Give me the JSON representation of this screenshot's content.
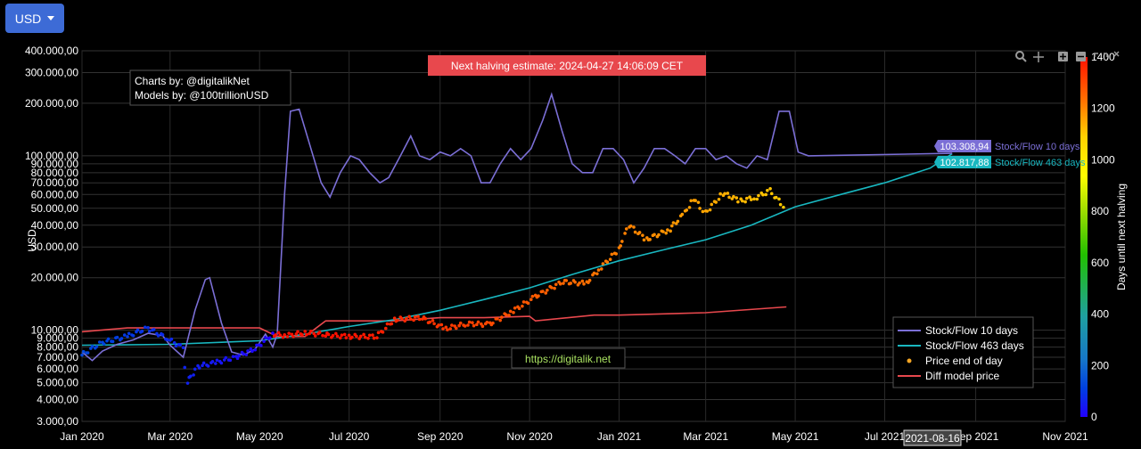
{
  "currency_button": {
    "label": "USD"
  },
  "credits": {
    "line1": "Charts by: @digitalikNet",
    "line2": "Models by: @100trillionUSD"
  },
  "halving_banner": "Next halving estimate: 2024-04-27 14:06:09 CET",
  "watermark": "https://digitalik.net",
  "crosshair_date": "2021-08-16",
  "colors": {
    "s2f10": "#7b6fd6",
    "s2f463": "#19b7c0",
    "diff": "#e8484d",
    "banner": "#e8484d",
    "button": "#3d6bd6"
  },
  "chart_data": {
    "type": "line",
    "x_ticks": [
      "Jan 2020",
      "Mar 2020",
      "May 2020",
      "Jul 2020",
      "Sep 2020",
      "Nov 2020",
      "Jan 2021",
      "Mar 2021",
      "May 2021",
      "Jul 2021",
      "Sep 2021",
      "Nov 2021"
    ],
    "x_range": [
      "2020-01-01",
      "2021-11-01"
    ],
    "y_scale": "log",
    "y_range": [
      3000,
      400000
    ],
    "y_label": "USD",
    "y_ticks": [
      "3.000,00",
      "4.000,00",
      "5.000,00",
      "6.000,00",
      "7.000,00",
      "8.000,00",
      "9.000,00",
      "10.000,00",
      "20.000,00",
      "30.000,00",
      "40.000,00",
      "50.000,00",
      "60.000,00",
      "70.000,00",
      "80.000,00",
      "90.000,00",
      "100.000,00",
      "200.000,00",
      "300.000,00",
      "400.000,00"
    ],
    "y_tick_values": [
      3000,
      4000,
      5000,
      6000,
      7000,
      8000,
      9000,
      10000,
      20000,
      30000,
      40000,
      50000,
      60000,
      70000,
      80000,
      90000,
      100000,
      200000,
      300000,
      400000
    ],
    "colorbar": {
      "label": "Days until next halving",
      "range": [
        0,
        1400
      ],
      "ticks": [
        "0",
        "200",
        "400",
        "600",
        "800",
        "1000",
        "1200",
        "1400"
      ],
      "tick_values": [
        0,
        200,
        400,
        600,
        800,
        1000,
        1200,
        1400
      ]
    },
    "legend": [
      {
        "name": "Stock/Flow 10 days",
        "color": "#7b6fd6",
        "style": "line"
      },
      {
        "name": "Stock/Flow 463 days",
        "color": "#19b7c0",
        "style": "line"
      },
      {
        "name": "Price end of day",
        "color": "#f5a623",
        "style": "dot"
      },
      {
        "name": "Diff model price",
        "color": "#e8484d",
        "style": "line"
      }
    ],
    "end_labels": [
      {
        "series": "Stock/Flow 10 days",
        "value": "103.308,94",
        "color": "#7b6fd6"
      },
      {
        "series": "Stock/Flow 463 days",
        "value": "102.817,88",
        "color": "#19b7c0"
      }
    ],
    "series": [
      {
        "name": "Stock/Flow 10 days",
        "points": [
          [
            "2020-01-01",
            7500
          ],
          [
            "2020-01-08",
            6700
          ],
          [
            "2020-01-15",
            7600
          ],
          [
            "2020-01-25",
            8300
          ],
          [
            "2020-02-05",
            8800
          ],
          [
            "2020-02-15",
            9600
          ],
          [
            "2020-02-25",
            9300
          ],
          [
            "2020-03-01",
            8200
          ],
          [
            "2020-03-10",
            7000
          ],
          [
            "2020-03-18",
            13000
          ],
          [
            "2020-03-25",
            19500
          ],
          [
            "2020-03-28",
            20000
          ],
          [
            "2020-04-05",
            11000
          ],
          [
            "2020-04-12",
            7500
          ],
          [
            "2020-04-20",
            7200
          ],
          [
            "2020-04-28",
            7800
          ],
          [
            "2020-05-05",
            9500
          ],
          [
            "2020-05-10",
            8000
          ],
          [
            "2020-05-13",
            9500
          ],
          [
            "2020-05-18",
            60000
          ],
          [
            "2020-05-22",
            180000
          ],
          [
            "2020-05-28",
            185000
          ],
          [
            "2020-06-05",
            110000
          ],
          [
            "2020-06-12",
            70000
          ],
          [
            "2020-06-18",
            58000
          ],
          [
            "2020-06-25",
            80000
          ],
          [
            "2020-07-02",
            100000
          ],
          [
            "2020-07-08",
            95000
          ],
          [
            "2020-07-15",
            80000
          ],
          [
            "2020-07-22",
            70000
          ],
          [
            "2020-07-28",
            75000
          ],
          [
            "2020-08-05",
            100000
          ],
          [
            "2020-08-12",
            130000
          ],
          [
            "2020-08-18",
            100000
          ],
          [
            "2020-08-25",
            95000
          ],
          [
            "2020-09-01",
            105000
          ],
          [
            "2020-09-08",
            100000
          ],
          [
            "2020-09-15",
            110000
          ],
          [
            "2020-09-22",
            100000
          ],
          [
            "2020-09-29",
            70000
          ],
          [
            "2020-10-05",
            70000
          ],
          [
            "2020-10-12",
            90000
          ],
          [
            "2020-10-19",
            110000
          ],
          [
            "2020-10-26",
            95000
          ],
          [
            "2020-11-02",
            110000
          ],
          [
            "2020-11-10",
            160000
          ],
          [
            "2020-11-16",
            225000
          ],
          [
            "2020-11-23",
            140000
          ],
          [
            "2020-11-30",
            90000
          ],
          [
            "2020-12-07",
            80000
          ],
          [
            "2020-12-14",
            80000
          ],
          [
            "2020-12-21",
            110000
          ],
          [
            "2020-12-28",
            110000
          ],
          [
            "2021-01-04",
            95000
          ],
          [
            "2021-01-11",
            70000
          ],
          [
            "2021-01-18",
            85000
          ],
          [
            "2021-01-25",
            110000
          ],
          [
            "2021-02-01",
            110000
          ],
          [
            "2021-02-08",
            100000
          ],
          [
            "2021-02-15",
            90000
          ],
          [
            "2021-02-22",
            110000
          ],
          [
            "2021-03-01",
            110000
          ],
          [
            "2021-03-08",
            95000
          ],
          [
            "2021-03-15",
            100000
          ],
          [
            "2021-03-22",
            90000
          ],
          [
            "2021-03-29",
            85000
          ],
          [
            "2021-04-05",
            100000
          ],
          [
            "2021-04-12",
            95000
          ],
          [
            "2021-04-20",
            180000
          ],
          [
            "2021-04-27",
            180000
          ],
          [
            "2021-05-03",
            105000
          ],
          [
            "2021-05-10",
            100000
          ],
          [
            "2021-08-16",
            103308.94
          ]
        ]
      },
      {
        "name": "Stock/Flow 463 days",
        "points": [
          [
            "2020-01-01",
            8200
          ],
          [
            "2020-03-01",
            8300
          ],
          [
            "2020-05-01",
            8700
          ],
          [
            "2020-06-01",
            9500
          ],
          [
            "2020-07-01",
            10500
          ],
          [
            "2020-08-01",
            11500
          ],
          [
            "2020-09-01",
            13000
          ],
          [
            "2020-10-01",
            15000
          ],
          [
            "2020-11-01",
            17500
          ],
          [
            "2020-12-01",
            21000
          ],
          [
            "2021-01-01",
            25000
          ],
          [
            "2021-02-01",
            29000
          ],
          [
            "2021-03-01",
            33000
          ],
          [
            "2021-04-01",
            40000
          ],
          [
            "2021-05-01",
            51000
          ],
          [
            "2021-06-01",
            60000
          ],
          [
            "2021-07-01",
            70000
          ],
          [
            "2021-08-01",
            85000
          ],
          [
            "2021-08-16",
            102817.88
          ]
        ]
      },
      {
        "name": "Price end of day",
        "color_by": "days_until_halving",
        "points": [
          [
            "2020-01-01",
            7200
          ],
          [
            "2020-01-15",
            8500
          ],
          [
            "2020-02-01",
            9200
          ],
          [
            "2020-02-15",
            10300
          ],
          [
            "2020-03-01",
            8800
          ],
          [
            "2020-03-10",
            7900
          ],
          [
            "2020-03-13",
            5000
          ],
          [
            "2020-03-20",
            6200
          ],
          [
            "2020-04-01",
            6500
          ],
          [
            "2020-04-15",
            7000
          ],
          [
            "2020-04-28",
            7800
          ],
          [
            "2020-05-10",
            9500
          ],
          [
            "2020-05-20",
            9300
          ],
          [
            "2020-06-01",
            9700
          ],
          [
            "2020-06-15",
            9400
          ],
          [
            "2020-07-01",
            9200
          ],
          [
            "2020-07-20",
            9200
          ],
          [
            "2020-08-01",
            11500
          ],
          [
            "2020-08-20",
            11800
          ],
          [
            "2020-09-05",
            10200
          ],
          [
            "2020-09-20",
            10900
          ],
          [
            "2020-10-05",
            10800
          ],
          [
            "2020-10-21",
            12900
          ],
          [
            "2020-11-05",
            15500
          ],
          [
            "2020-11-24",
            19000
          ],
          [
            "2020-12-10",
            18500
          ],
          [
            "2020-12-20",
            23000
          ],
          [
            "2021-01-01",
            29000
          ],
          [
            "2021-01-08",
            40000
          ],
          [
            "2021-01-20",
            33000
          ],
          [
            "2021-02-05",
            38000
          ],
          [
            "2021-02-15",
            47000
          ],
          [
            "2021-02-21",
            57000
          ],
          [
            "2021-03-01",
            47000
          ],
          [
            "2021-03-13",
            61000
          ],
          [
            "2021-03-25",
            55000
          ],
          [
            "2021-04-05",
            58000
          ],
          [
            "2021-04-14",
            63000
          ],
          [
            "2021-04-25",
            50000
          ]
        ]
      },
      {
        "name": "Diff model price",
        "points": [
          [
            "2020-01-01",
            9800
          ],
          [
            "2020-02-01",
            10300
          ],
          [
            "2020-05-01",
            10300
          ],
          [
            "2020-05-13",
            9200
          ],
          [
            "2020-06-01",
            9200
          ],
          [
            "2020-06-15",
            11300
          ],
          [
            "2020-08-01",
            11300
          ],
          [
            "2020-09-01",
            11800
          ],
          [
            "2020-10-01",
            11800
          ],
          [
            "2020-11-01",
            12000
          ],
          [
            "2020-11-05",
            11300
          ],
          [
            "2020-12-15",
            12200
          ],
          [
            "2021-01-01",
            12200
          ],
          [
            "2021-03-01",
            12600
          ],
          [
            "2021-04-25",
            13600
          ]
        ]
      }
    ]
  }
}
